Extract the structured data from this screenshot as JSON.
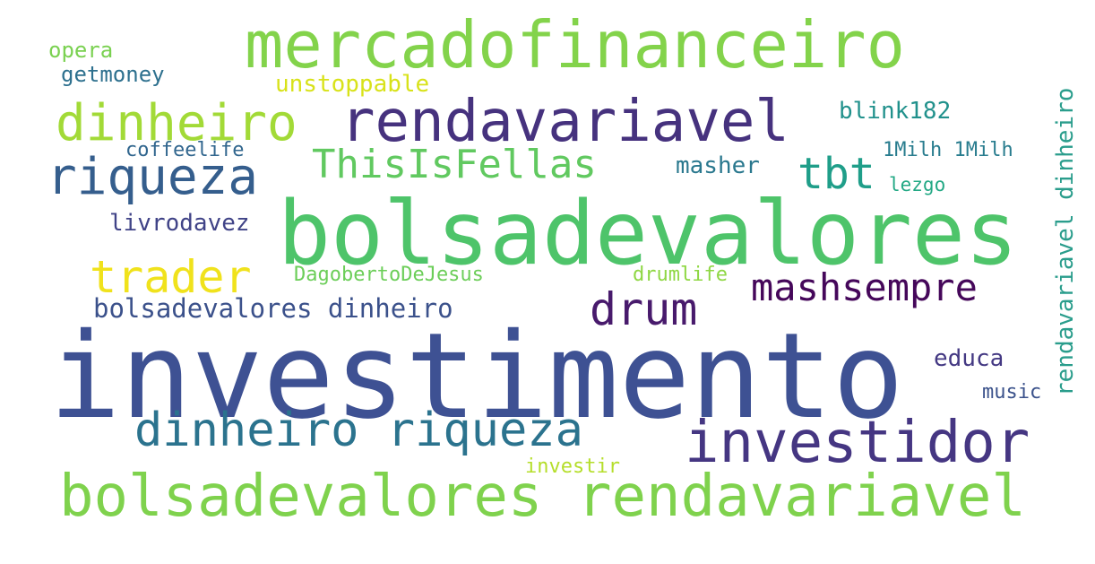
{
  "cloud": {
    "background": "#ffffff",
    "words": {
      "investimento": {
        "text": "investimento",
        "color": "#3e5193"
      },
      "bolsadevalores": {
        "text": "bolsadevalores",
        "color": "#4ec46a"
      },
      "bolsadevalores_rendavariavel": {
        "text": "bolsadevalores rendavariavel",
        "color": "#7fd24d"
      },
      "mercadofinanceiro": {
        "text": "mercadofinanceiro",
        "color": "#83d34b"
      },
      "rendavariavel": {
        "text": "rendavariavel",
        "color": "#46327e"
      },
      "investidor": {
        "text": "investidor",
        "color": "#453682"
      },
      "dinheiro": {
        "text": "dinheiro",
        "color": "#a2da37"
      },
      "riqueza": {
        "text": "riqueza",
        "color": "#355e8d"
      },
      "dinheiro_riqueza": {
        "text": "dinheiro riqueza",
        "color": "#2b738e"
      },
      "thisisfellas": {
        "text": "ThisIsFellas",
        "color": "#61c960"
      },
      "trader": {
        "text": "trader",
        "color": "#f0e21c"
      },
      "drum": {
        "text": "drum",
        "color": "#481a6c"
      },
      "mashsempre": {
        "text": "mashsempre",
        "color": "#45075a"
      },
      "tbt": {
        "text": "tbt",
        "color": "#1f9e89"
      },
      "bolsadevalores_dinheiro": {
        "text": "bolsadevalores dinheiro",
        "color": "#3b518b"
      },
      "rendavariavel_dinheiro": {
        "text": "rendavariavel dinheiro",
        "color": "#2a9d8c"
      },
      "blink182": {
        "text": "blink182",
        "color": "#21918c"
      },
      "masher": {
        "text": "masher",
        "color": "#2a788e"
      },
      "onemilh": {
        "text": "1Milh 1Milh",
        "color": "#287c8e"
      },
      "lezgo": {
        "text": "lezgo",
        "color": "#22a884"
      },
      "unstoppable": {
        "text": "unstoppable",
        "color": "#d8e219"
      },
      "opera": {
        "text": "opera",
        "color": "#7ad151"
      },
      "getmoney": {
        "text": "getmoney",
        "color": "#2d708e"
      },
      "coffeelife": {
        "text": "coffeelife",
        "color": "#31668e"
      },
      "livrodavez": {
        "text": "livrodavez",
        "color": "#404387"
      },
      "dagobertodejesus": {
        "text": "DagobertoDeJesus",
        "color": "#6cce59"
      },
      "drumlife": {
        "text": "drumlife",
        "color": "#8fd744"
      },
      "educa": {
        "text": "educa",
        "color": "#443983"
      },
      "music": {
        "text": "music",
        "color": "#3b528b"
      },
      "investir": {
        "text": "investir",
        "color": "#b5de2b"
      }
    }
  }
}
